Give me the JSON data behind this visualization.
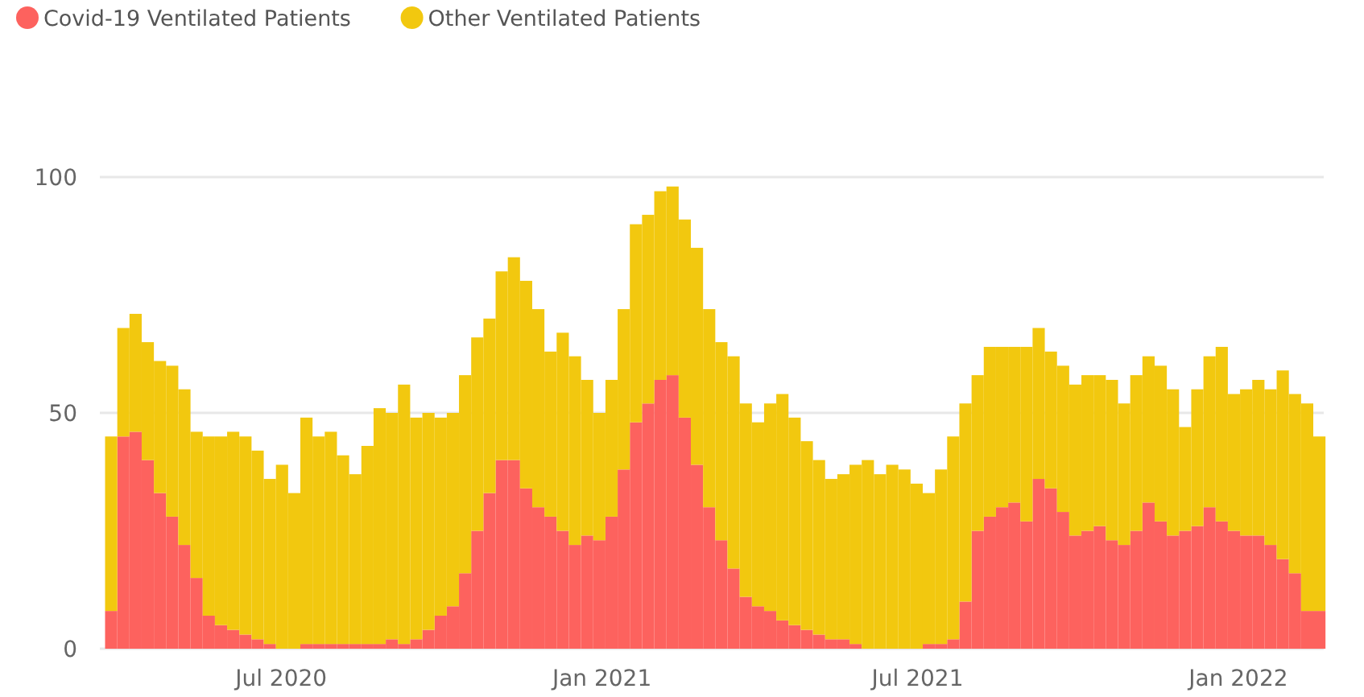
{
  "chart_data": {
    "type": "bar",
    "stacked": true,
    "legend": "top left",
    "grid": "y",
    "x": [
      "2020-03-22",
      "2020-03-29",
      "2020-04-05",
      "2020-04-12",
      "2020-04-19",
      "2020-04-26",
      "2020-05-03",
      "2020-05-10",
      "2020-05-17",
      "2020-05-24",
      "2020-05-31",
      "2020-06-07",
      "2020-06-14",
      "2020-06-21",
      "2020-06-28",
      "2020-07-05",
      "2020-07-12",
      "2020-07-19",
      "2020-07-26",
      "2020-08-02",
      "2020-08-09",
      "2020-08-16",
      "2020-08-23",
      "2020-08-30",
      "2020-09-06",
      "2020-09-13",
      "2020-09-20",
      "2020-09-27",
      "2020-10-04",
      "2020-10-11",
      "2020-10-18",
      "2020-10-25",
      "2020-11-01",
      "2020-11-08",
      "2020-11-15",
      "2020-11-22",
      "2020-11-29",
      "2020-12-06",
      "2020-12-13",
      "2020-12-20",
      "2020-12-27",
      "2021-01-03",
      "2021-01-10",
      "2021-01-17",
      "2021-01-24",
      "2021-01-31",
      "2021-02-07",
      "2021-02-14",
      "2021-02-21",
      "2021-02-28",
      "2021-03-07",
      "2021-03-14",
      "2021-03-21",
      "2021-03-28",
      "2021-04-04",
      "2021-04-11",
      "2021-04-18",
      "2021-04-25",
      "2021-05-02",
      "2021-05-09",
      "2021-05-16",
      "2021-05-23",
      "2021-05-30",
      "2021-06-06",
      "2021-06-13",
      "2021-06-20",
      "2021-06-27",
      "2021-07-04",
      "2021-07-11",
      "2021-07-18",
      "2021-07-25",
      "2021-08-01",
      "2021-08-08",
      "2021-08-15",
      "2021-08-22",
      "2021-08-29",
      "2021-09-05",
      "2021-09-12",
      "2021-09-19",
      "2021-09-26",
      "2021-10-03",
      "2021-10-10",
      "2021-10-17",
      "2021-10-24",
      "2021-10-31",
      "2021-11-07",
      "2021-11-14",
      "2021-11-21",
      "2021-11-28",
      "2021-12-05",
      "2021-12-12",
      "2021-12-19",
      "2021-12-26",
      "2022-01-02",
      "2022-01-09",
      "2022-01-16",
      "2022-01-23",
      "2022-01-30",
      "2022-02-06",
      "2022-02-13"
    ],
    "series": [
      {
        "name": "Covid-19 Ventilated Patients",
        "color": "#fd625e",
        "values": [
          8,
          45,
          46,
          40,
          33,
          28,
          22,
          15,
          7,
          5,
          4,
          3,
          2,
          1,
          0,
          0,
          1,
          1,
          1,
          1,
          1,
          1,
          1,
          2,
          1,
          2,
          4,
          7,
          9,
          16,
          25,
          33,
          40,
          40,
          34,
          30,
          28,
          25,
          22,
          24,
          23,
          28,
          38,
          48,
          52,
          57,
          58,
          49,
          39,
          30,
          23,
          17,
          11,
          9,
          8,
          6,
          5,
          4,
          3,
          2,
          2,
          1,
          0,
          0,
          0,
          0,
          0,
          1,
          1,
          2,
          10,
          25,
          28,
          30,
          31,
          27,
          36,
          34,
          29,
          24,
          25,
          26,
          23,
          22,
          25,
          31,
          27,
          24,
          25,
          26,
          30,
          27,
          25,
          24,
          24,
          22,
          19,
          16,
          8,
          8
        ]
      },
      {
        "name": "Other Ventilated Patients",
        "color": "#f2c80f",
        "values": [
          37,
          23,
          25,
          25,
          28,
          32,
          33,
          31,
          38,
          40,
          42,
          42,
          40,
          35,
          39,
          33,
          48,
          44,
          45,
          40,
          36,
          42,
          50,
          48,
          55,
          47,
          46,
          42,
          41,
          42,
          41,
          37,
          40,
          43,
          44,
          42,
          35,
          42,
          40,
          33,
          27,
          29,
          34,
          42,
          40,
          40,
          40,
          42,
          46,
          42,
          42,
          45,
          41,
          39,
          44,
          48,
          44,
          40,
          37,
          34,
          35,
          38,
          40,
          37,
          39,
          38,
          35,
          32,
          37,
          43,
          42,
          33,
          36,
          34,
          33,
          37,
          32,
          29,
          31,
          32,
          33,
          32,
          34,
          30,
          33,
          31,
          33,
          31,
          22,
          29,
          32,
          37,
          29,
          31,
          33,
          33,
          40,
          38,
          44,
          37
        ]
      }
    ],
    "xlim": [
      "2020-03-19",
      "2022-02-19"
    ],
    "xticks": [
      {
        "value": "2020-07-01",
        "label": "Jul 2020"
      },
      {
        "value": "2021-01-01",
        "label": "Jan 2021"
      },
      {
        "value": "2021-07-01",
        "label": "Jul 2021"
      },
      {
        "value": "2022-01-01",
        "label": "Jan 2022"
      }
    ],
    "ylim": [
      0,
      100
    ],
    "yticks": [
      0,
      50,
      100
    ]
  }
}
